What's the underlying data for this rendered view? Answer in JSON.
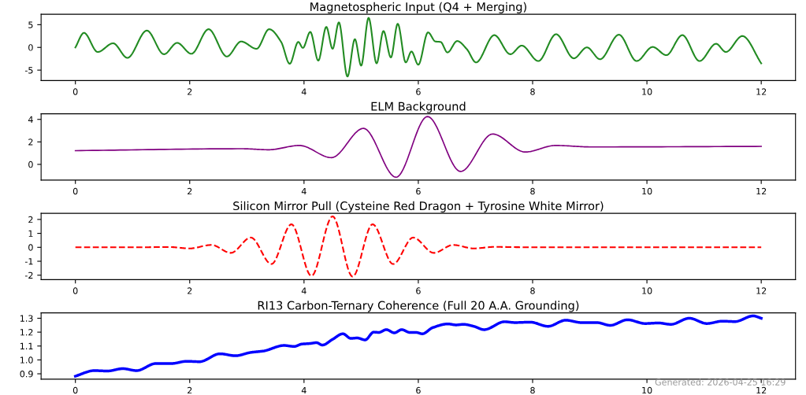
{
  "chart_data": [
    {
      "type": "line",
      "title": "Magnetospheric Input (Q4 + Merging)",
      "xlim": [
        -0.6,
        12.6
      ],
      "xticks": [
        0,
        2,
        4,
        6,
        8,
        10,
        12
      ],
      "ylim": [
        -7.3,
        7.3
      ],
      "yticks": [
        -5,
        0,
        5
      ],
      "grid": false,
      "x": [
        0,
        0.15,
        0.39,
        0.66,
        0.91,
        1.25,
        1.55,
        1.78,
        2.03,
        2.33,
        2.65,
        2.9,
        3.17,
        3.39,
        3.6,
        3.75,
        3.9,
        3.98,
        4.11,
        4.25,
        4.39,
        4.5,
        4.61,
        4.76,
        4.89,
        5.0,
        5.13,
        5.27,
        5.39,
        5.52,
        5.64,
        5.78,
        5.88,
        6.0,
        6.17,
        6.3,
        6.39,
        6.51,
        6.68,
        6.85,
        7.01,
        7.33,
        7.61,
        7.81,
        8.1,
        8.41,
        8.72,
        8.95,
        9.18,
        9.51,
        9.82,
        10.1,
        10.34,
        10.62,
        10.92,
        11.21,
        11.38,
        11.67,
        12
      ],
      "series": [
        {
          "color": "#228b22",
          "line_style": "solid",
          "values": [
            0,
            3.2,
            -1.0,
            0.9,
            -2.3,
            3.7,
            -1.5,
            1.0,
            -1.4,
            4.0,
            -2.0,
            1.3,
            -0.3,
            4.0,
            1.2,
            -3.6,
            1.2,
            -0.1,
            3.4,
            -2.9,
            4.5,
            -0.3,
            5.5,
            -6.4,
            1.8,
            -4.0,
            6.5,
            -3.5,
            3.6,
            -2.2,
            5.2,
            -3.3,
            -0.9,
            -3.8,
            3.3,
            1.3,
            1.2,
            -1.1,
            1.4,
            -0.4,
            -3.3,
            2.7,
            -1.5,
            0.4,
            -3.0,
            2.9,
            -2.4,
            0.0,
            -2.6,
            2.8,
            -3.0,
            0.1,
            -1.7,
            2.7,
            -3.0,
            0.8,
            -1.0,
            2.5,
            -3.5
          ]
        }
      ]
    },
    {
      "type": "line",
      "title": "ELM Background",
      "xlim": [
        -0.6,
        12.6
      ],
      "xticks": [
        0,
        2,
        4,
        6,
        8,
        10,
        12
      ],
      "ylim": [
        -1.4,
        4.5
      ],
      "yticks": [
        0,
        2,
        4
      ],
      "grid": false,
      "x": [
        0,
        2.93,
        3.38,
        3.92,
        4.48,
        5.04,
        5.61,
        6.16,
        6.74,
        7.3,
        7.87,
        8.4,
        9.03,
        12
      ],
      "series": [
        {
          "color": "#800080",
          "line_style": "solid",
          "values": [
            1.22,
            1.39,
            1.3,
            1.68,
            0.6,
            3.2,
            -1.14,
            4.25,
            -0.63,
            2.7,
            1.1,
            1.68,
            1.55,
            1.6
          ]
        }
      ]
    },
    {
      "type": "line",
      "title": "Silicon Mirror Pull (Cysteine Red Dragon + Tyrosine White Mirror)",
      "xlim": [
        -0.6,
        12.6
      ],
      "xticks": [
        0,
        2,
        4,
        6,
        8,
        10,
        12
      ],
      "ylim": [
        -2.32,
        2.44
      ],
      "yticks": [
        -2,
        -1,
        0,
        1,
        2
      ],
      "grid": false,
      "x": [
        0,
        1.0,
        1.65,
        2.0,
        2.38,
        2.72,
        3.07,
        3.43,
        3.78,
        4.13,
        4.5,
        4.85,
        5.2,
        5.56,
        5.91,
        6.27,
        6.61,
        6.97,
        7.33,
        8.0,
        12
      ],
      "series": [
        {
          "color": "#ff0000",
          "line_style": "dashed",
          "values": [
            0,
            0,
            0.02,
            -0.08,
            0.17,
            -0.4,
            0.7,
            -1.2,
            1.65,
            -2.05,
            2.22,
            -2.1,
            1.65,
            -1.2,
            0.7,
            -0.4,
            0.17,
            -0.08,
            0.03,
            0,
            0
          ]
        }
      ]
    },
    {
      "type": "line",
      "title": "RI13 Carbon-Ternary Coherence (Full 20 A.A. Grounding)",
      "xlim": [
        -0.6,
        12.6
      ],
      "xticks": [
        0,
        2,
        4,
        6,
        8,
        10,
        12
      ],
      "ylim": [
        0.861,
        1.339
      ],
      "yticks": [
        0.9,
        {
          "value": 1,
          "label": "1.0"
        },
        1.1,
        1.2,
        1.3
      ],
      "grid": false,
      "annotations": [
        "Generated: 2026-04-25 16:29"
      ],
      "x": [
        0,
        0.33,
        0.56,
        0.83,
        1.07,
        1.41,
        1.68,
        1.95,
        2.17,
        2.53,
        2.8,
        3.07,
        3.29,
        3.65,
        3.83,
        3.96,
        4.1,
        4.22,
        4.32,
        4.5,
        4.68,
        4.82,
        4.93,
        5.07,
        5.22,
        5.31,
        5.44,
        5.58,
        5.71,
        5.85,
        5.96,
        6.07,
        6.25,
        6.52,
        6.66,
        6.79,
        6.97,
        7.15,
        7.51,
        7.69,
        7.96,
        8.27,
        8.58,
        8.85,
        9.12,
        9.36,
        9.66,
        9.97,
        10.2,
        10.42,
        10.74,
        11.05,
        11.32,
        11.54,
        11.86,
        12
      ],
      "series": [
        {
          "color": "#0000ff",
          "line_style": "solid",
          "values": [
            0.883,
            0.923,
            0.92,
            0.937,
            0.923,
            0.974,
            0.974,
            0.99,
            0.987,
            1.044,
            1.03,
            1.054,
            1.064,
            1.104,
            1.097,
            1.114,
            1.118,
            1.124,
            1.107,
            1.148,
            1.188,
            1.155,
            1.158,
            1.144,
            1.2,
            1.198,
            1.218,
            1.195,
            1.218,
            1.198,
            1.198,
            1.188,
            1.232,
            1.259,
            1.252,
            1.256,
            1.242,
            1.218,
            1.275,
            1.269,
            1.272,
            1.242,
            1.286,
            1.269,
            1.269,
            1.249,
            1.289,
            1.262,
            1.266,
            1.256,
            1.3,
            1.262,
            1.279,
            1.276,
            1.317,
            1.3
          ]
        }
      ]
    }
  ]
}
